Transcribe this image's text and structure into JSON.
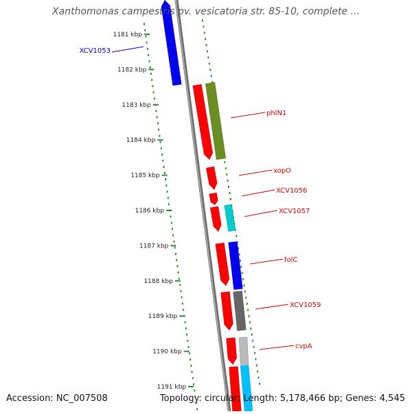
{
  "title": "Xanthomonas campestris pv. vesicatoria str. 85-10, complete ...",
  "footer": {
    "accession": "Accession: NC_007508",
    "summary": "Topology: circular; Length: 5,178,466 bp; Genes: 4,545"
  },
  "colors": {
    "background": "#ffffff",
    "scale_dots": "#2e8b2e",
    "backbone": "#8c8c8c",
    "label_red": "#dd0000",
    "label_blue": "#0000cc"
  },
  "ticks": [
    "1181 kbp",
    "1182 kbp",
    "1183 kbp",
    "1184 kbp",
    "1185 kbp",
    "1186 kbp",
    "1187 kbp",
    "1188 kbp",
    "1189 kbp",
    "1190 kbp",
    "1191 kbp"
  ],
  "features": [
    {
      "name": "XCV1053",
      "color": "#0000ee",
      "strand": "plus-top"
    },
    {
      "name": "phlN1",
      "color": "#6b8e23",
      "strand": "plus"
    },
    {
      "name": "xopO",
      "color": "#ff0000",
      "strand": "minus"
    },
    {
      "name": "XCV1056",
      "color": "#ff0000",
      "strand": "minus"
    },
    {
      "name": "XCV1057",
      "color": "#00cccc",
      "strand": "plus"
    },
    {
      "name": "folC",
      "color": "#0000ee",
      "strand": "plus"
    },
    {
      "name": "XCV1059",
      "color": "#666666",
      "strand": "plus"
    },
    {
      "name": "cvpA",
      "color": "#bbbbbb",
      "strand": "plus"
    }
  ],
  "unlabeled_features": [
    {
      "color": "#ff0000",
      "strand": "minus"
    },
    {
      "color": "#ff0000",
      "strand": "minus"
    },
    {
      "color": "#ff0000",
      "strand": "minus"
    },
    {
      "color": "#00bfff",
      "strand": "plus"
    }
  ]
}
